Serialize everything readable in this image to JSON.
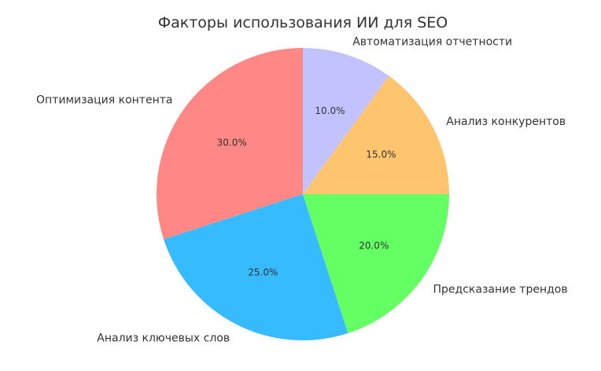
{
  "chart_data": {
    "type": "pie",
    "title": "Факторы использования ИИ для SEO",
    "start_angle_deg": 90,
    "direction": "counterclockwise",
    "slices": [
      {
        "label": "Оптимизация контента",
        "value": 30.0,
        "pct_label": "30.0%",
        "color": "#ff8886"
      },
      {
        "label": "Анализ ключевых слов",
        "value": 25.0,
        "pct_label": "25.0%",
        "color": "#36bbff"
      },
      {
        "label": "Предсказание трендов",
        "value": 20.0,
        "pct_label": "20.0%",
        "color": "#63ff63"
      },
      {
        "label": "Анализ конкурентов",
        "value": 15.0,
        "pct_label": "15.0%",
        "color": "#ffc46e"
      },
      {
        "label": "Автоматизация отчетности",
        "value": 10.0,
        "pct_label": "10.0%",
        "color": "#c2c2ff"
      }
    ]
  }
}
